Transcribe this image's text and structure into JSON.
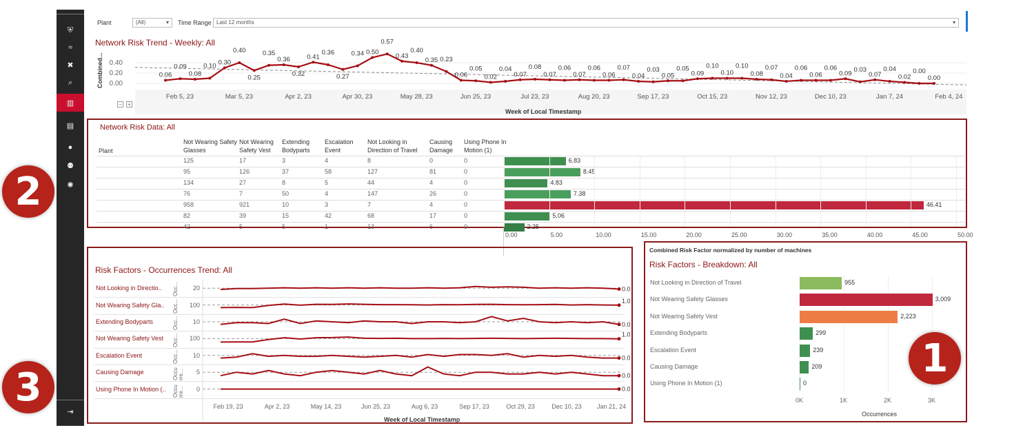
{
  "sidebar": {
    "items": [
      {
        "icon": "shield-icon",
        "glyph": "⛨"
      },
      {
        "icon": "waves-icon",
        "glyph": "≈"
      },
      {
        "icon": "tools-icon",
        "glyph": "✖"
      },
      {
        "icon": "search-document-icon",
        "glyph": "⌕"
      },
      {
        "icon": "bar-chart-icon",
        "glyph": "▥",
        "active": true
      },
      {
        "icon": "book-icon",
        "glyph": "▤"
      },
      {
        "icon": "person-icon",
        "glyph": "●"
      },
      {
        "icon": "group-icon",
        "glyph": "⚉"
      },
      {
        "icon": "aperture-icon",
        "glyph": "✺"
      }
    ],
    "logout": {
      "icon": "logout-icon",
      "glyph": "⇥"
    }
  },
  "filters": {
    "plant_label": "Plant",
    "plant_value": "(All)",
    "time_label": "Time Range",
    "time_value": "Last 12 months"
  },
  "colors": {
    "accent": "#8b1414",
    "line": "#a50f15",
    "green": "#3f8f50",
    "red": "#c0283e",
    "orange": "#ee7d45",
    "lightgreen": "#8cbb5e"
  },
  "trend": {
    "title": "Network Risk Trend - Weekly: All",
    "ylabel": "Combined...",
    "xlabel": "Week of Local Timestamp",
    "yticks": [
      "0.40",
      "0.20",
      "0.00"
    ],
    "xticks": [
      "Feb 5, 23",
      "Mar 5, 23",
      "Apr 2, 23",
      "Apr 30, 23",
      "May 28, 23",
      "Jun 25, 23",
      "Jul 23, 23",
      "Aug 20, 23",
      "Sep 17, 23",
      "Oct 15, 23",
      "Nov 12, 23",
      "Dec 10, 23",
      "Jan 7, 24",
      "Feb 4, 24"
    ],
    "controls": {
      "minus": "−",
      "plus": "+"
    }
  },
  "table": {
    "title": "Network Risk Data: All",
    "columns": [
      "Plant",
      "Not Wearing Safety Glasses",
      "Not Wearing Safety Vest",
      "Extending Bodyparts",
      "Escalation Event",
      "Not Looking in Direction of Travel",
      "Causing Damage",
      "Using Phone In Motion (1)"
    ],
    "rows": [
      [
        "",
        "125",
        "17",
        "3",
        "4",
        "8",
        "0",
        "0"
      ],
      [
        "",
        "95",
        "126",
        "37",
        "58",
        "127",
        "81",
        "0"
      ],
      [
        "",
        "134",
        "27",
        "8",
        "5",
        "44",
        "4",
        "0"
      ],
      [
        "",
        "76",
        "7",
        "50",
        "4",
        "147",
        "26",
        "0"
      ],
      [
        "",
        "958",
        "921",
        "10",
        "3",
        "7",
        "4",
        "0"
      ],
      [
        "",
        "82",
        "39",
        "15",
        "42",
        "68",
        "17",
        "0"
      ],
      [
        "",
        "42",
        "5",
        "5",
        "1",
        "13",
        "6",
        "0"
      ]
    ],
    "bar_values": [
      6.83,
      8.45,
      4.83,
      7.38,
      46.41,
      5.06,
      2.25
    ],
    "bar_labels": [
      "6.83",
      "8.45",
      "4.83",
      "7.38",
      "46.41",
      "5.06",
      "2.25"
    ],
    "bar_colors": [
      "#3f8f50",
      "#4a9e5c",
      "#3f8f50",
      "#4a9e5c",
      "#c0283e",
      "#3f8f50",
      "#357e45"
    ],
    "axis_ticks": [
      "0.00",
      "5.00",
      "10.00",
      "15.00",
      "20.00",
      "25.00",
      "30.00",
      "35.00",
      "40.00",
      "45.00",
      "50.00"
    ],
    "axis_caption": "Combined Risk Factor normalized by number of machines"
  },
  "occurrences": {
    "title": "Risk Factors - Occurrences Trend: All",
    "ylabels": [
      "Occ...",
      "Occ...",
      "Occ...",
      "Occ...",
      "Occ...",
      "Occu rre...",
      "Occu rre..."
    ],
    "xticks": [
      "Feb 19, 23",
      "Apr 2, 23",
      "May 14, 23",
      "Jun 25, 23",
      "Aug 6, 23",
      "Sep 17, 23",
      "Oct 29, 23",
      "Dec 10, 23",
      "Jan 21, 24"
    ],
    "xlabel": "Week of Local Timestamp",
    "series": [
      {
        "label": "Not Looking in Directio..",
        "tick": "20",
        "ref": 20,
        "end": "0.0",
        "values": [
          17,
          19,
          19,
          20,
          21,
          20,
          21,
          20,
          21,
          20,
          21,
          20,
          20,
          21,
          20,
          21,
          24,
          22,
          23,
          22,
          20,
          21,
          20,
          21,
          20,
          18
        ]
      },
      {
        "label": "Not Wearing Safety Gla..",
        "tick": "100",
        "ref": 100,
        "end": "1.0",
        "values": [
          70,
          72,
          70,
          95,
          110,
          98,
          108,
          106,
          112,
          108,
          104,
          104,
          102,
          100,
          104,
          102,
          106,
          108,
          104,
          102,
          104,
          106,
          100,
          104,
          100,
          98
        ]
      },
      {
        "label": "Extending Bodyparts",
        "tick": "10",
        "ref": 10,
        "end": "0.0",
        "values": [
          7,
          9,
          9,
          8,
          13,
          8,
          11,
          10,
          9,
          11,
          10,
          10,
          8,
          10,
          10,
          9,
          10,
          16,
          11,
          14,
          10,
          9,
          10,
          9,
          10,
          7
        ]
      },
      {
        "label": "Not Wearing Safety Vest",
        "tick": "100",
        "ref": 100,
        "end": "1.0",
        "values": [
          60,
          62,
          62,
          90,
          110,
          95,
          110,
          112,
          118,
          104,
          102,
          104,
          100,
          100,
          102,
          100,
          102,
          104,
          102,
          100,
          102,
          104,
          102,
          100,
          100,
          98
        ]
      },
      {
        "label": "Escalation Event",
        "tick": "10",
        "ref": 10,
        "end": "0.0",
        "values": [
          7,
          8,
          12,
          9,
          10,
          9,
          9,
          10,
          9,
          8,
          9,
          10,
          8,
          11,
          9,
          11,
          11,
          10,
          12,
          8,
          10,
          9,
          10,
          8,
          7,
          7
        ]
      },
      {
        "label": "Causing Damage",
        "tick": "5",
        "ref": 5,
        "end": "0.0",
        "values": [
          3,
          5,
          4,
          6,
          4,
          3,
          5,
          6,
          5,
          4,
          6,
          4,
          3,
          8,
          4,
          3,
          5,
          5,
          4,
          4,
          5,
          4,
          5,
          4,
          3,
          3
        ]
      },
      {
        "label": "Using Phone In Motion (..",
        "tick": "0",
        "ref": 0,
        "end": "0.0",
        "values": [
          0,
          0,
          0,
          0,
          0,
          0,
          0,
          0,
          0,
          0,
          0,
          0,
          0,
          0,
          0,
          0,
          0,
          0,
          0,
          0,
          0,
          0,
          0,
          0,
          0,
          0
        ]
      }
    ]
  },
  "breakdown": {
    "title": "Risk Factors - Breakdown: All",
    "xlabel": "Occurrences",
    "xticks": [
      "0K",
      "1K",
      "2K",
      "3K"
    ],
    "categories": [
      "Not Looking in Direction of Travel",
      "Not Wearing Safety Glasses",
      "Not Wearing Safety Vest",
      "Extending Bodyparts",
      "Escalation Event",
      "Causing Damage",
      "Using Phone In Motion (1)"
    ],
    "values": [
      955,
      3009,
      2223,
      299,
      239,
      209,
      0
    ],
    "labels": [
      "955",
      "3,009",
      "2,223",
      "299",
      "239",
      "209",
      "0"
    ],
    "colors": [
      "#8cbb5e",
      "#c0283e",
      "#ee7d45",
      "#3f8f50",
      "#3f8f50",
      "#3f8f50",
      "#3f8f50"
    ]
  },
  "badges": [
    "1",
    "2",
    "3"
  ],
  "chart_data": [
    {
      "type": "line",
      "title": "Network Risk Trend - Weekly: All",
      "xlabel": "Week of Local Timestamp",
      "ylabel": "Combined...",
      "ylim": [
        0,
        0.6
      ],
      "trendline": true,
      "values": [
        0.06,
        0.09,
        0.08,
        0.1,
        0.3,
        0.4,
        0.25,
        0.35,
        0.36,
        0.32,
        0.41,
        0.36,
        0.27,
        0.34,
        0.5,
        0.57,
        0.43,
        0.4,
        0.35,
        0.23,
        0.06,
        0.05,
        0.02,
        0.04,
        0.07,
        0.08,
        0.07,
        0.06,
        0.07,
        0.06,
        0.06,
        0.07,
        0.04,
        0.03,
        0.05,
        0.05,
        0.09,
        0.1,
        0.1,
        0.1,
        0.08,
        0.07,
        0.04,
        0.06,
        0.06,
        0.06,
        0.09,
        0.03,
        0.07,
        0.04,
        0.02,
        0.0,
        0.0
      ]
    },
    {
      "type": "bar",
      "title": "Network Risk Data: All",
      "xlim": [
        0,
        50
      ],
      "values": [
        6.83,
        8.45,
        4.83,
        7.38,
        46.41,
        5.06,
        2.25
      ]
    },
    {
      "type": "bar",
      "title": "Risk Factors - Breakdown: All",
      "xlabel": "Occurrences",
      "xlim": [
        0,
        3400
      ],
      "categories": [
        "Not Looking in Direction of Travel",
        "Not Wearing Safety Glasses",
        "Not Wearing Safety Vest",
        "Extending Bodyparts",
        "Escalation Event",
        "Causing Damage",
        "Using Phone In Motion (1)"
      ],
      "values": [
        955,
        3009,
        2223,
        299,
        239,
        209,
        0
      ]
    }
  ]
}
